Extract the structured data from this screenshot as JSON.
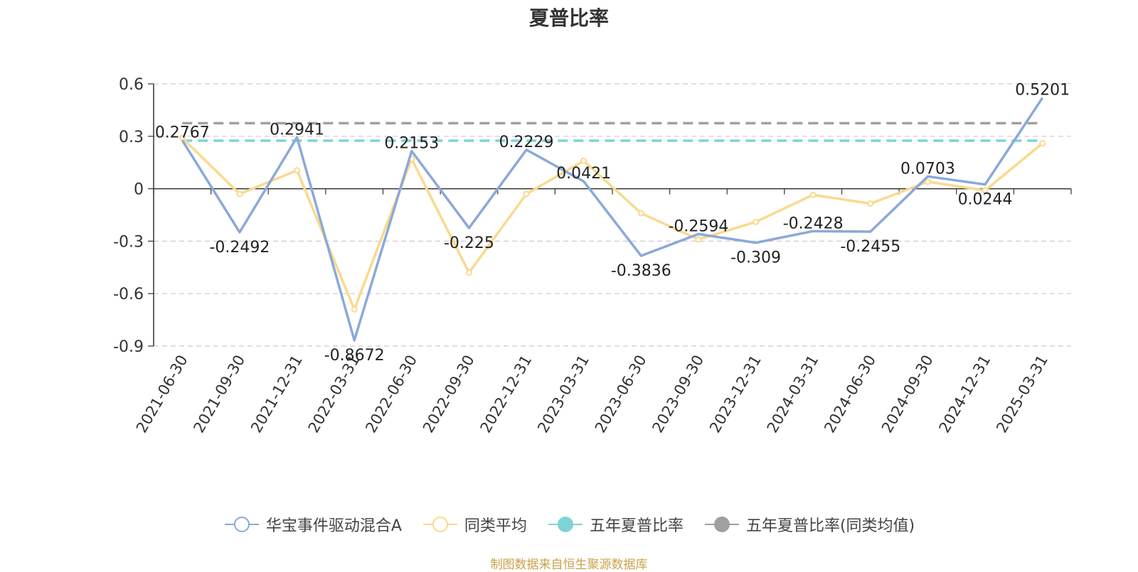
{
  "chart_data": {
    "type": "line",
    "title": "夏普比率",
    "categories": [
      "2021-06-30",
      "2021-09-30",
      "2021-12-31",
      "2022-03-31",
      "2022-06-30",
      "2022-09-30",
      "2022-12-31",
      "2023-03-31",
      "2023-06-30",
      "2023-09-30",
      "2023-12-31",
      "2024-03-31",
      "2024-06-30",
      "2024-09-30",
      "2024-12-31",
      "2025-03-31"
    ],
    "yticks": [
      "0.6",
      "0.3",
      "0",
      "-0.3",
      "-0.6",
      "-0.9"
    ],
    "ylim": [
      -0.9,
      0.6
    ],
    "grid": true,
    "legend_position": "bottom",
    "series": [
      {
        "name": "华宝事件驱动混合A",
        "color": "#8aa9d8",
        "values": [
          0.2767,
          -0.2492,
          0.2941,
          -0.8672,
          0.2153,
          -0.225,
          0.2229,
          0.0421,
          -0.3836,
          -0.2594,
          -0.309,
          -0.2428,
          -0.2455,
          0.0703,
          0.0244,
          0.5201
        ],
        "labels": [
          "0.2767",
          "-0.2492",
          "0.2941",
          "-0.8672",
          "0.2153",
          "-0.225",
          "0.2229",
          "0.0421",
          "-0.3836",
          "-0.2594",
          "-0.309",
          "-0.2428",
          "-0.2455",
          "0.0703",
          "0.0244",
          "0.5201"
        ]
      },
      {
        "name": "同类平均",
        "color": "#fad98e",
        "values": [
          0.29,
          -0.03,
          0.105,
          -0.69,
          0.17,
          -0.48,
          -0.03,
          0.16,
          -0.14,
          -0.29,
          -0.19,
          -0.035,
          -0.085,
          0.04,
          -0.01,
          0.26
        ]
      }
    ],
    "reference_lines": [
      {
        "name": "五年夏普比率",
        "color": "#7fd3d6",
        "value": 0.275
      },
      {
        "name": "五年夏普比率(同类均值)",
        "color": "#a0a0a0",
        "value": 0.375
      }
    ]
  },
  "legend": {
    "items": [
      {
        "label": "华宝事件驱动混合A",
        "color": "#8aa9d8",
        "marker": "hollow-circle"
      },
      {
        "label": "同类平均",
        "color": "#fad98e",
        "marker": "hollow-circle"
      },
      {
        "label": "五年夏普比率",
        "color": "#7fd3d6",
        "marker": "filled-circle"
      },
      {
        "label": "五年夏普比率(同类均值)",
        "color": "#a0a0a0",
        "marker": "filled-circle"
      }
    ]
  },
  "source": "制图数据来自恒生聚源数据库"
}
